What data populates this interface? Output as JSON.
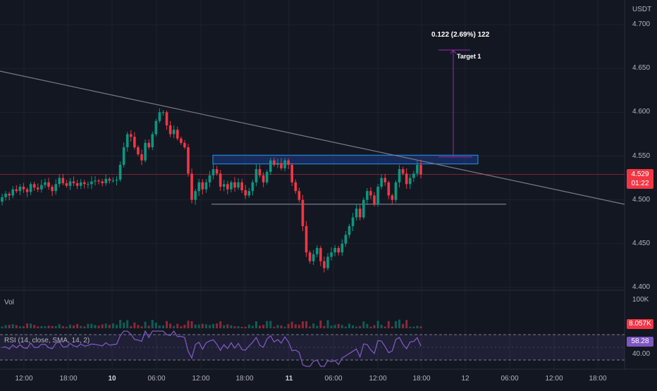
{
  "axis": {
    "currency": "USDT",
    "price_ticks": [
      "4.700",
      "4.650",
      "4.600",
      "4.550",
      "4.500",
      "4.450",
      "4.400"
    ],
    "time_ticks": [
      "12:00",
      "18:00",
      "10",
      "06:00",
      "12:00",
      "18:00",
      "11",
      "06:00",
      "12:00",
      "18:00",
      "12",
      "06:00",
      "12:00",
      "18:00"
    ],
    "bold_time_ticks": [
      "10",
      "11"
    ]
  },
  "last_price": {
    "value": "4.529",
    "countdown": "01:22",
    "color": "#f23645"
  },
  "measure": {
    "label": "0.122 (2.69%) 122",
    "target_label": "Target 1"
  },
  "volume": {
    "title": "Vol",
    "scale_label": "100K",
    "current": "8.057K",
    "current_color": "#f23645"
  },
  "rsi": {
    "title": "RSI (14, close, SMA, 14, 2)",
    "value": "58.28",
    "level_label": "40.00",
    "color": "#7e57c2"
  },
  "colors": {
    "up": "#089981",
    "down": "#f23645",
    "background": "#131722",
    "zone": "#2962ff",
    "trendline": "#787b86"
  },
  "chart_data": {
    "type": "candlestick",
    "symbol_quote": "USDT",
    "ylim": [
      4.395,
      4.72
    ],
    "price_ticks": [
      4.7,
      4.65,
      4.6,
      4.55,
      4.5,
      4.45,
      4.4
    ],
    "time_ticks": [
      "12:00",
      "18:00",
      "10",
      "06:00",
      "12:00",
      "18:00",
      "11",
      "06:00",
      "12:00",
      "18:00",
      "12",
      "06:00",
      "12:00",
      "18:00"
    ],
    "last_price": 4.529,
    "resistance_zone": [
      4.541,
      4.551
    ],
    "support_level": 4.495,
    "target_price": 4.671,
    "measured_move": {
      "change": 0.122,
      "percent": 2.69
    },
    "rsi": {
      "value": 58.28,
      "band": [
        30,
        70
      ]
    },
    "volume_current": "8.057K",
    "closes": [
      4.503,
      4.507,
      4.505,
      4.512,
      4.51,
      4.515,
      4.512,
      4.509,
      4.518,
      4.514,
      4.512,
      4.517,
      4.52,
      4.515,
      4.51,
      4.518,
      4.525,
      4.519,
      4.516,
      4.521,
      4.519,
      4.516,
      4.52,
      4.518,
      4.518,
      4.521,
      4.522,
      4.521,
      4.519,
      4.524,
      4.522,
      4.522,
      4.523,
      4.54,
      4.56,
      4.575,
      4.572,
      4.56,
      4.552,
      4.545,
      4.565,
      4.56,
      4.575,
      4.59,
      4.6,
      4.6,
      4.585,
      4.575,
      4.58,
      4.57,
      4.565,
      4.56,
      4.53,
      4.5,
      4.51,
      4.52,
      4.512,
      4.52,
      4.528,
      4.535,
      4.53,
      4.515,
      4.518,
      4.512,
      4.52,
      4.514,
      4.52,
      4.511,
      4.505,
      4.51,
      4.52,
      4.535,
      4.528,
      4.52,
      4.532,
      4.545,
      4.54,
      4.542,
      4.536,
      4.545,
      4.54,
      4.52,
      4.51,
      4.5,
      4.47,
      4.44,
      4.43,
      4.438,
      4.445,
      4.43,
      4.422,
      4.435,
      4.44,
      4.445,
      4.44,
      4.45,
      4.46,
      4.47,
      4.48,
      4.49,
      4.48,
      4.5,
      4.51,
      4.505,
      4.495,
      4.515,
      4.525,
      4.52,
      4.505,
      4.5,
      4.52,
      4.535,
      4.53,
      4.518,
      4.525,
      4.53,
      4.54,
      4.529
    ]
  }
}
